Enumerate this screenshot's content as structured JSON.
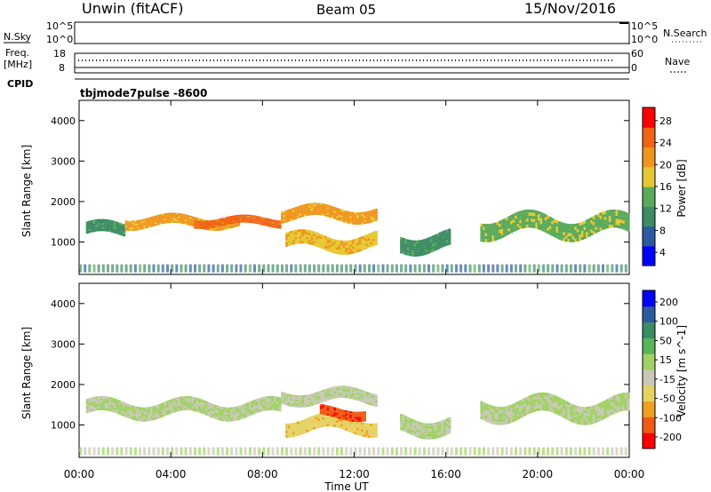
{
  "header": {
    "station": "Unwin (fitACF)",
    "beam": "Beam 05",
    "date": "15/Nov/2016"
  },
  "status_panel": {
    "nsky_label": "N.Sky",
    "nsky_ticks": [
      "10^5",
      "10^0"
    ],
    "nsearch_label": "N.Search",
    "nsearch_ticks": [
      "10^5",
      "10^0"
    ],
    "freq_label": "Freq.",
    "freq_unit": "[MHz]",
    "freq_ticks": [
      "18",
      "8"
    ],
    "nave_label": "Nave",
    "nave_ticks": [
      "60",
      "0"
    ],
    "cpid_label": "CPID",
    "cpid_value": "tbjmode7pulse -8600"
  },
  "x_axis": {
    "label": "Time UT",
    "ticks": [
      "00:00",
      "04:00",
      "08:00",
      "12:00",
      "16:00",
      "20:00",
      "00:00"
    ]
  },
  "colors": {
    "power_scale": [
      "#0000ff",
      "#2c5aa0",
      "#3c8c64",
      "#5aaa5a",
      "#e6c832",
      "#f0961e",
      "#f06414",
      "#ff0000"
    ],
    "velocity_scale": [
      "#ff0000",
      "#f05a14",
      "#f0a01e",
      "#e6d264",
      "#c8c8b4",
      "#a0d264",
      "#5ab45a",
      "#3c8c64",
      "#2c5aa0",
      "#0000ff"
    ]
  },
  "chart_data": [
    {
      "type": "heatmap",
      "name": "power",
      "ylabel": "Slant Range [km]",
      "y_ticks": [
        "4000",
        "3000",
        "2000",
        "1000"
      ],
      "ylim": [
        200,
        4500
      ],
      "xlim_hours": [
        0,
        24
      ],
      "colorbar": {
        "label": "Power [dB]",
        "ticks": [
          "28",
          "24",
          "20",
          "16",
          "12",
          "8",
          "4"
        ],
        "range": [
          0,
          30
        ]
      },
      "echo_regions": [
        {
          "t_start": 0.3,
          "t_end": 2.0,
          "r_center": 1300,
          "r_width": 300,
          "value": 10
        },
        {
          "t_start": 2.0,
          "t_end": 7.0,
          "r_center": 1500,
          "r_width": 250,
          "value": 20
        },
        {
          "t_start": 5.0,
          "t_end": 8.8,
          "r_center": 1500,
          "r_width": 200,
          "value": 24
        },
        {
          "t_start": 8.8,
          "t_end": 13.0,
          "r_center": 1700,
          "r_width": 300,
          "value": 20
        },
        {
          "t_start": 9.0,
          "t_end": 13.0,
          "r_center": 1000,
          "r_width": 350,
          "value": 18
        },
        {
          "t_start": 14.0,
          "t_end": 16.2,
          "r_center": 1000,
          "r_width": 400,
          "value": 10
        },
        {
          "t_start": 17.5,
          "t_end": 24.0,
          "r_center": 1400,
          "r_width": 450,
          "value": 14
        }
      ]
    },
    {
      "type": "heatmap",
      "name": "velocity",
      "ylabel": "Slant Range [km]",
      "y_ticks": [
        "4000",
        "3000",
        "2000",
        "1000"
      ],
      "ylim": [
        200,
        4500
      ],
      "xlim_hours": [
        0,
        24
      ],
      "colorbar": {
        "label": "Velocity [m s^-1]",
        "ticks": [
          "200",
          "100",
          "50",
          "15",
          "-15",
          "-50",
          "-100",
          "-200"
        ],
        "range": [
          -250,
          250
        ]
      },
      "echo_regions": [
        {
          "t_start": 0.3,
          "t_end": 8.8,
          "r_center": 1400,
          "r_width": 350,
          "value": 0
        },
        {
          "t_start": 8.8,
          "t_end": 13.0,
          "r_center": 1700,
          "r_width": 300,
          "value": -10
        },
        {
          "t_start": 9.0,
          "t_end": 13.0,
          "r_center": 1000,
          "r_width": 350,
          "value": -80
        },
        {
          "t_start": 10.5,
          "t_end": 12.5,
          "r_center": 1300,
          "r_width": 250,
          "value": -180
        },
        {
          "t_start": 14.0,
          "t_end": 16.2,
          "r_center": 1000,
          "r_width": 400,
          "value": 0
        },
        {
          "t_start": 17.5,
          "t_end": 24.0,
          "r_center": 1400,
          "r_width": 450,
          "value": 5
        }
      ]
    }
  ]
}
